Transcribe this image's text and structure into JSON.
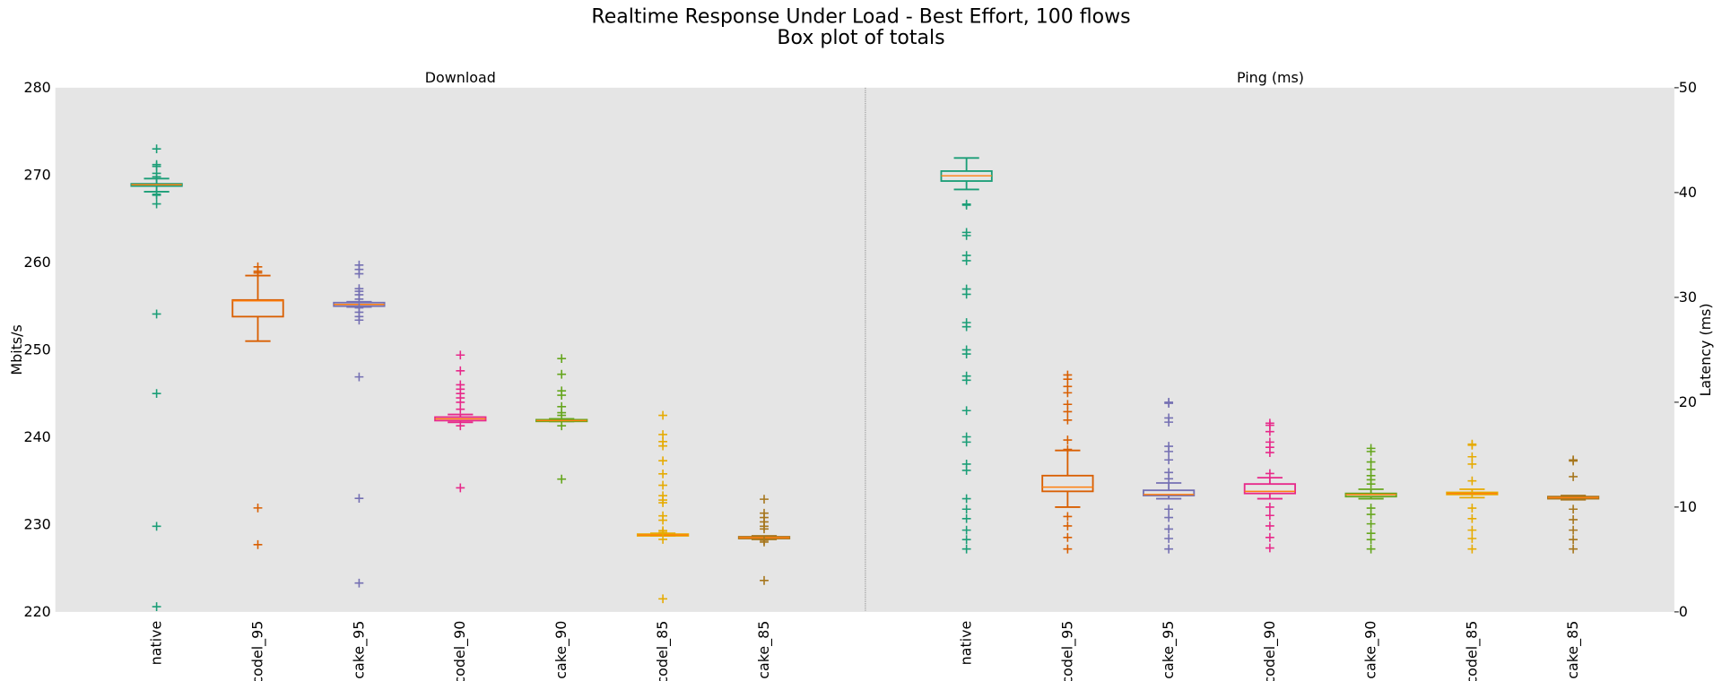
{
  "chart_data": {
    "title": "Realtime Response Under Load - Best Effort, 100 flows",
    "subtitle": "Box plot of totals",
    "colors": [
      "#1b9e77",
      "#d95f02",
      "#7570b3",
      "#e7298a",
      "#66a61e",
      "#e6ab02",
      "#a6761d"
    ],
    "median_color": "#ff7f0e",
    "background": "#e5e5e5",
    "categories": [
      "native",
      "codel_95",
      "cake_95",
      "codel_90",
      "cake_90",
      "codel_85",
      "cake_85"
    ],
    "panels": [
      {
        "type": "box",
        "title": "Download",
        "ylabel": "Mbits/s",
        "axis_side": "left",
        "ylim": [
          220,
          280
        ],
        "yticks": [
          220,
          230,
          240,
          250,
          260,
          270,
          280
        ],
        "boxes": [
          {
            "whislo": 268.1,
            "q1": 268.75,
            "med": 268.9,
            "q3": 269.0,
            "whishi": 269.6,
            "fliers": [
              273.0,
              271.2,
              271.0,
              270.2,
              269.8,
              267.8,
              267.7,
              266.7,
              254.1,
              245.0,
              229.8,
              220.6
            ]
          },
          {
            "whislo": 251.0,
            "q1": 253.8,
            "med": 255.6,
            "q3": 255.7,
            "whishi": 258.5,
            "fliers": [
              259.5,
              259.0,
              258.8,
              231.9,
              227.7
            ]
          },
          {
            "whislo": 254.9,
            "q1": 255.0,
            "med": 255.2,
            "q3": 255.4,
            "whishi": 255.5,
            "fliers": [
              259.7,
              259.2,
              258.7,
              257.0,
              256.7,
              256.3,
              255.8,
              254.8,
              254.3,
              253.8,
              253.4,
              246.9,
              233.0,
              223.3
            ]
          },
          {
            "whislo": 241.7,
            "q1": 241.9,
            "med": 242.1,
            "q3": 242.3,
            "whishi": 242.6,
            "fliers": [
              249.4,
              247.6,
              246.0,
              245.5,
              245.0,
              244.5,
              244.0,
              243.2,
              241.3,
              234.2
            ]
          },
          {
            "whislo": 241.8,
            "q1": 241.85,
            "med": 241.9,
            "q3": 242.0,
            "whishi": 242.1,
            "fliers": [
              249.0,
              247.2,
              245.3,
              244.8,
              243.5,
              242.8,
              242.5,
              241.3,
              235.2
            ]
          },
          {
            "whislo": 228.7,
            "q1": 228.75,
            "med": 228.8,
            "q3": 228.9,
            "whishi": 229.0,
            "fliers": [
              242.5,
              240.3,
              239.5,
              239.0,
              237.3,
              235.8,
              234.5,
              233.3,
              232.8,
              232.5,
              231.0,
              230.5,
              229.3,
              229.1,
              228.3,
              221.5
            ]
          },
          {
            "whislo": 228.3,
            "q1": 228.4,
            "med": 228.5,
            "q3": 228.6,
            "whishi": 228.7,
            "fliers": [
              232.9,
              231.3,
              230.8,
              230.3,
              229.8,
              229.5,
              228.2,
              228.0,
              223.6
            ]
          }
        ]
      },
      {
        "type": "box",
        "title": "Ping (ms)",
        "ylabel": "Latency (ms)",
        "axis_side": "right",
        "ylim": [
          0,
          50
        ],
        "yticks": [
          0,
          10,
          20,
          30,
          40,
          50
        ],
        "boxes": [
          {
            "whislo": 40.3,
            "q1": 41.1,
            "med": 41.6,
            "q3": 42.05,
            "whishi": 43.3,
            "fliers": [
              38.9,
              38.8,
              36.2,
              35.9,
              34.0,
              33.5,
              30.8,
              30.3,
              27.6,
              27.2,
              25.0,
              24.6,
              22.5,
              22.1,
              19.2,
              16.7,
              16.2,
              14.1,
              13.5,
              10.8,
              9.8,
              8.9,
              7.8,
              6.9,
              6.0
            ]
          },
          {
            "whislo": 10.0,
            "q1": 11.5,
            "med": 11.9,
            "q3": 13.0,
            "whishi": 15.4,
            "fliers": [
              22.6,
              22.2,
              21.5,
              20.9,
              19.8,
              19.1,
              18.3,
              16.4,
              15.5,
              9.1,
              8.2,
              7.1,
              6.0
            ]
          },
          {
            "whislo": 10.8,
            "q1": 11.1,
            "med": 11.2,
            "q3": 11.6,
            "whishi": 12.3,
            "fliers": [
              20.0,
              19.9,
              18.5,
              18.1,
              15.8,
              15.3,
              14.5,
              13.3,
              12.7,
              9.8,
              9.0,
              7.9,
              7.0,
              6.0
            ]
          },
          {
            "whislo": 10.8,
            "q1": 11.3,
            "med": 11.5,
            "q3": 12.2,
            "whishi": 12.8,
            "fliers": [
              18.0,
              17.8,
              17.2,
              16.2,
              15.7,
              15.2,
              13.2,
              10.0,
              9.2,
              8.2,
              7.1,
              6.1
            ]
          },
          {
            "whislo": 10.8,
            "q1": 11.0,
            "med": 11.2,
            "q3": 11.3,
            "whishi": 11.7,
            "fliers": [
              15.6,
              15.3,
              14.3,
              13.6,
              13.0,
              12.6,
              12.2,
              9.9,
              9.3,
              8.4,
              7.5,
              6.9,
              6.0
            ]
          },
          {
            "whislo": 10.9,
            "q1": 11.2,
            "med": 11.3,
            "q3": 11.4,
            "whishi": 11.7,
            "fliers": [
              16.0,
              15.9,
              14.8,
              14.1,
              12.5,
              9.9,
              8.9,
              7.8,
              7.0,
              6.0
            ]
          },
          {
            "whislo": 10.7,
            "q1": 10.8,
            "med": 10.9,
            "q3": 11.0,
            "whishi": 11.1,
            "fliers": [
              14.5,
              14.4,
              12.9,
              9.8,
              8.8,
              7.8,
              6.9,
              6.0
            ]
          }
        ]
      }
    ]
  }
}
